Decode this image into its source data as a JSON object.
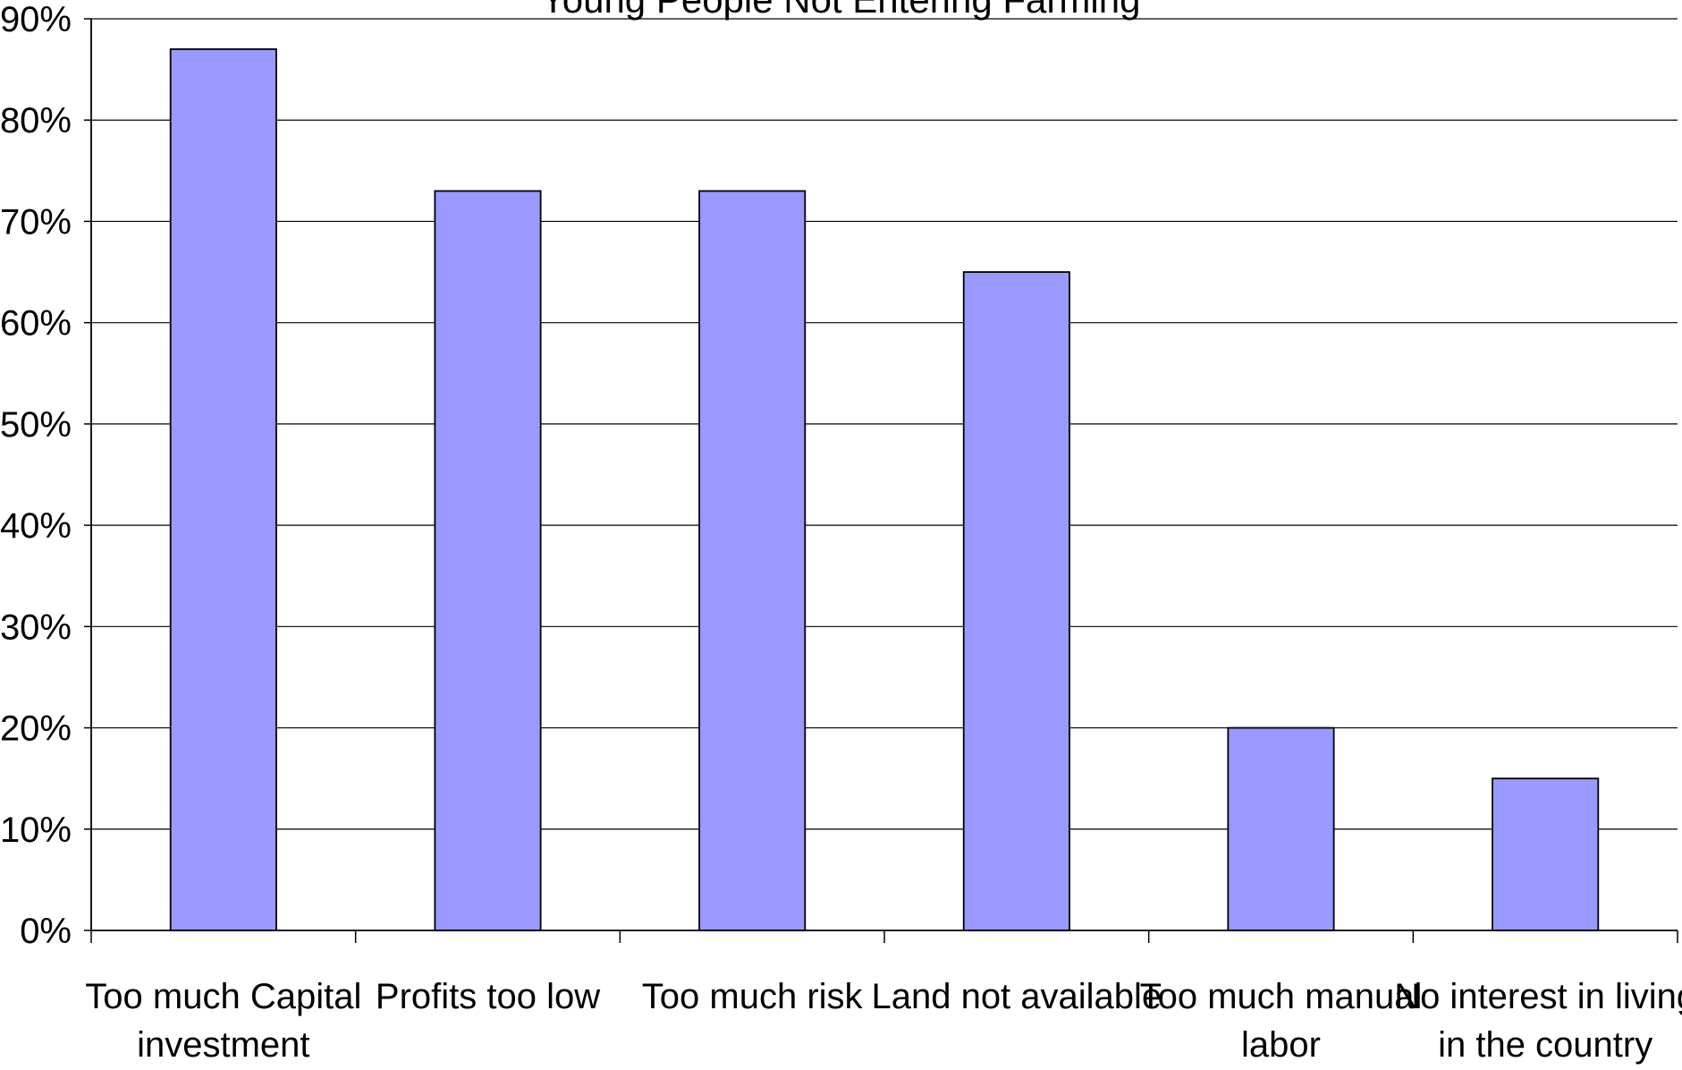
{
  "chart_data": {
    "type": "bar",
    "title": "Young People Not Entering Farming",
    "categories": [
      [
        "Too much Capital",
        "investment"
      ],
      [
        "Profits too low"
      ],
      [
        "Too much risk"
      ],
      [
        "Land not available"
      ],
      [
        "Too much manual",
        "labor"
      ],
      [
        "No interest in living",
        "in the country"
      ]
    ],
    "values": [
      87,
      73,
      73,
      65,
      20,
      15
    ],
    "ylim": [
      0,
      90
    ],
    "yticks": [
      0,
      10,
      20,
      30,
      40,
      50,
      60,
      70,
      80,
      90
    ],
    "ytick_labels": [
      "0%",
      "10%",
      "20%",
      "30%",
      "40%",
      "50%",
      "60%",
      "70%",
      "80%",
      "90%"
    ],
    "grid": true,
    "legend": "none",
    "colors": {
      "bar": "#9999ff",
      "bar_stroke": "#000000",
      "grid": "#000000",
      "axis": "#000000"
    }
  }
}
